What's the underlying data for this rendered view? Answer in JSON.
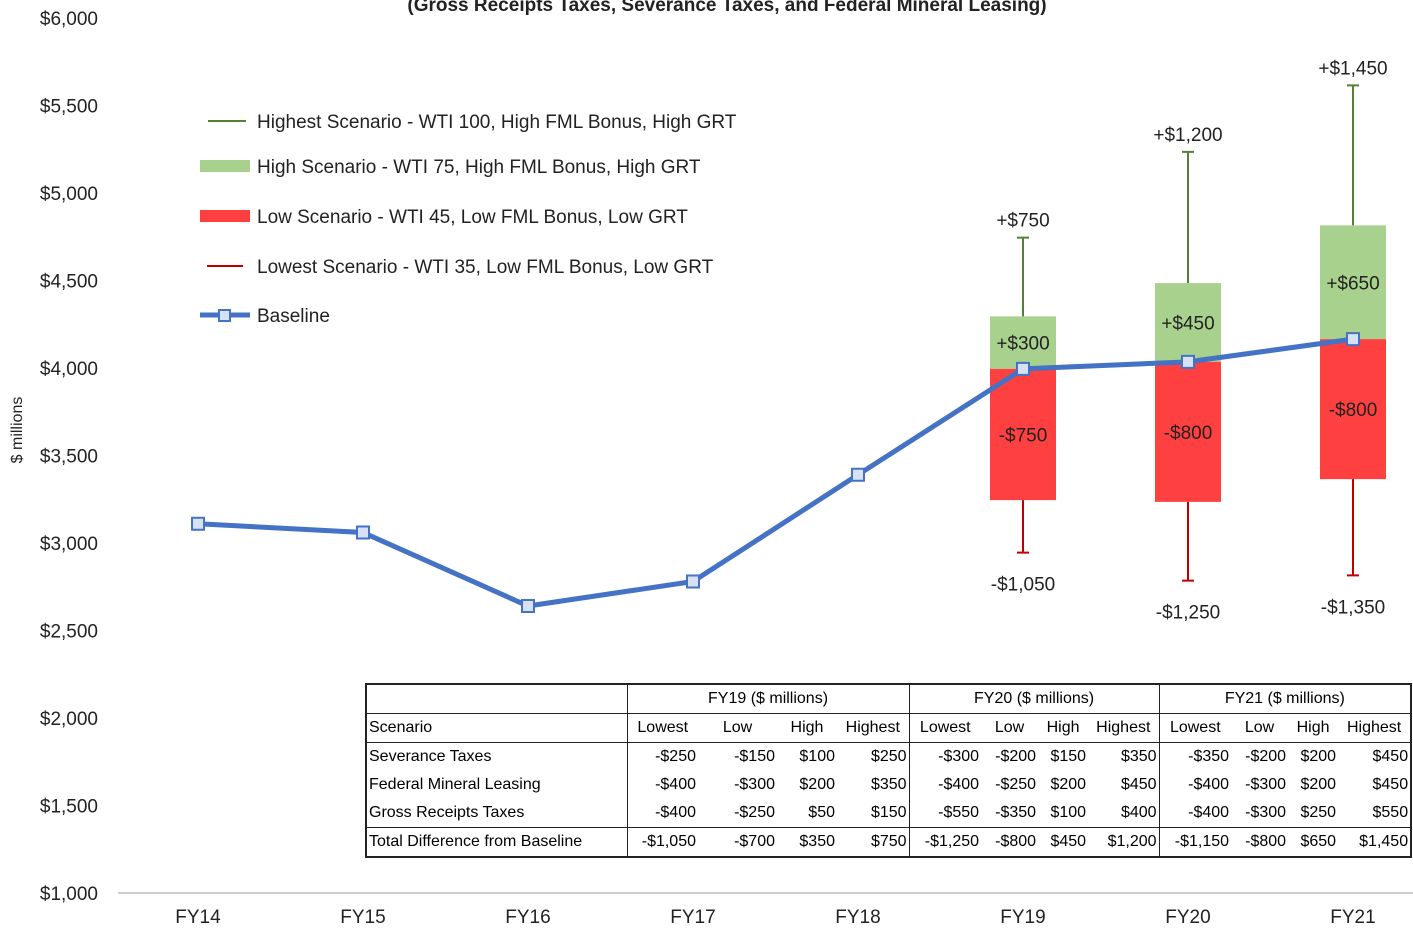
{
  "chart_data": {
    "type": "line",
    "title": "(Gross Receipts Taxes, Severance Taxes, and Federal Mineral Leasing)",
    "y_label": "$ millions",
    "categories": [
      "FY14",
      "FY15",
      "FY16",
      "FY17",
      "FY18",
      "FY19",
      "FY20",
      "FY21"
    ],
    "ylim": [
      1000,
      6000
    ],
    "yticks": [
      {
        "value": 1000,
        "label": "$1,000"
      },
      {
        "value": 1500,
        "label": "$1,500"
      },
      {
        "value": 2000,
        "label": "$2,000"
      },
      {
        "value": 2500,
        "label": "$2,500"
      },
      {
        "value": 3000,
        "label": "$3,000"
      },
      {
        "value": 3500,
        "label": "$3,500"
      },
      {
        "value": 4000,
        "label": "$4,000"
      },
      {
        "value": 4500,
        "label": "$4,500"
      },
      {
        "value": 5000,
        "label": "$5,000"
      },
      {
        "value": 5500,
        "label": "$5,500"
      },
      {
        "value": 6000,
        "label": "$6,000"
      }
    ],
    "legend": "upper left",
    "series": [
      {
        "name": "Highest Scenario - WTI 100, High FML Bonus, High GRT",
        "type": "whisker-up",
        "color": "#548235",
        "values": [
          null,
          null,
          null,
          null,
          null,
          750,
          1200,
          1450
        ],
        "value_labels": [
          null,
          null,
          null,
          null,
          null,
          "+$750",
          "+$1,200",
          "+$1,450"
        ]
      },
      {
        "name": "High Scenario - WTI 75, High FML Bonus, High GRT",
        "type": "bar-up",
        "color": "#a9d18e",
        "values": [
          null,
          null,
          null,
          null,
          null,
          300,
          450,
          650
        ],
        "value_labels": [
          null,
          null,
          null,
          null,
          null,
          "+$300",
          "+$450",
          "+$650"
        ]
      },
      {
        "name": "Low Scenario - WTI 45, Low FML Bonus, Low GRT",
        "type": "bar-down",
        "color": "#ff4040",
        "values": [
          null,
          null,
          null,
          null,
          null,
          -750,
          -800,
          -800
        ],
        "value_labels": [
          null,
          null,
          null,
          null,
          null,
          "-$750",
          "-$800",
          "-$800"
        ]
      },
      {
        "name": "Lowest Scenario - WTI 35, Low FML Bonus, Low GRT",
        "type": "whisker-down",
        "color": "#c00000",
        "values": [
          null,
          null,
          null,
          null,
          null,
          -1050,
          -1250,
          -1350
        ],
        "value_labels": [
          null,
          null,
          null,
          null,
          null,
          "-$1,050",
          "-$1,250",
          "-$1,350"
        ]
      },
      {
        "name": "Baseline",
        "type": "line",
        "color": "#4472c4",
        "values": [
          3110,
          3060,
          2640,
          2780,
          3390,
          3995,
          4035,
          4165
        ]
      }
    ]
  },
  "table": {
    "groups": [
      "FY19 ($ millions)",
      "FY20 ($ millions)",
      "FY21 ($ millions)"
    ],
    "header": [
      "Scenario",
      "Lowest",
      "Low",
      "High",
      "Highest",
      "Lowest",
      "Low",
      "High",
      "Highest",
      "Lowest",
      "Low",
      "High",
      "Highest"
    ],
    "rows": [
      [
        "Severance Taxes",
        "-$250",
        "-$150",
        "$100",
        "$250",
        "-$300",
        "-$200",
        "$150",
        "$350",
        "-$350",
        "-$200",
        "$200",
        "$450"
      ],
      [
        "Federal Mineral Leasing",
        "-$400",
        "-$300",
        "$200",
        "$350",
        "-$400",
        "-$250",
        "$200",
        "$450",
        "-$400",
        "-$300",
        "$200",
        "$450"
      ],
      [
        "Gross Receipts Taxes",
        "-$400",
        "-$250",
        "$50",
        "$150",
        "-$550",
        "-$350",
        "$100",
        "$400",
        "-$400",
        "-$300",
        "$250",
        "$550"
      ],
      [
        "Total Difference from Baseline",
        "-$1,050",
        "-$700",
        "$350",
        "$750",
        "-$1,250",
        "-$800",
        "$450",
        "$1,200",
        "-$1,150",
        "-$800",
        "$650",
        "$1,450"
      ]
    ]
  }
}
